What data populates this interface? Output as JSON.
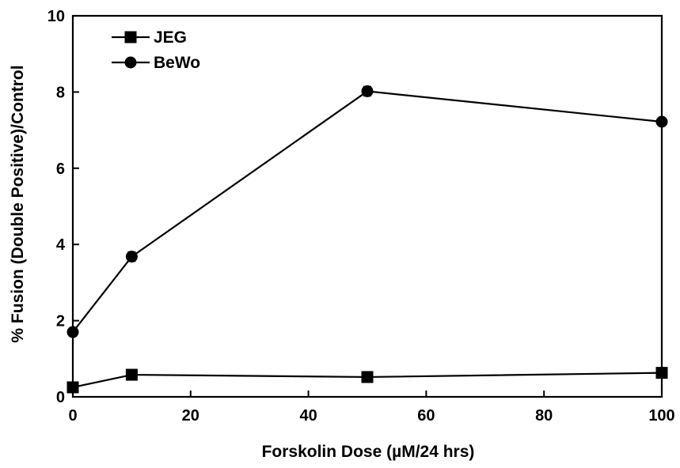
{
  "chart_data": {
    "type": "line",
    "title": "",
    "xlabel": "Forskolin Dose (µM/24 hrs)",
    "ylabel": "% Fusion (Double Positive)/Control",
    "xlim": [
      0,
      100
    ],
    "ylim": [
      0,
      10
    ],
    "xticks": [
      0,
      20,
      40,
      60,
      80,
      100
    ],
    "yticks": [
      0,
      2,
      4,
      6,
      8,
      10
    ],
    "xtick_labels": [
      "0",
      "20",
      "40",
      "60",
      "80",
      "100"
    ],
    "ytick_labels": [
      "0",
      "2",
      "4",
      "6",
      "8",
      "10"
    ],
    "grid": false,
    "legend_position": "top-left",
    "series": [
      {
        "name": "JEG",
        "marker": "square",
        "color": "#000000",
        "x": [
          0,
          10,
          50,
          100
        ],
        "y": [
          0.25,
          0.58,
          0.52,
          0.63
        ],
        "error": [
          0.05,
          0.05,
          0.05,
          0.05
        ]
      },
      {
        "name": "BeWo",
        "marker": "circle",
        "color": "#000000",
        "x": [
          0,
          10,
          50,
          100
        ],
        "y": [
          1.7,
          3.68,
          8.02,
          7.22
        ],
        "error": [
          0.1,
          0.12,
          0.12,
          0.08
        ]
      }
    ]
  }
}
